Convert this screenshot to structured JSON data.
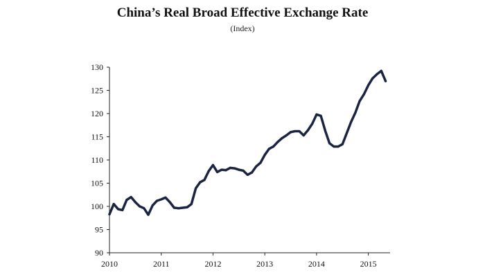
{
  "chart_data": {
    "type": "line",
    "title": "China’s Real Broad Effective Exchange Rate",
    "subtitle": "(Index)",
    "xlabel": "",
    "ylabel": "",
    "xlim": [
      2010,
      2015.42
    ],
    "ylim": [
      90,
      130
    ],
    "yticks": [
      90,
      95,
      100,
      105,
      110,
      115,
      120,
      125,
      130
    ],
    "xticks": [
      2010,
      2011,
      2012,
      2013,
      2014,
      2015
    ],
    "grid": false,
    "line_color": "#1b2440",
    "series": [
      {
        "name": "Real Broad Effective Exchange Rate",
        "x": [
          2010.0,
          2010.083,
          2010.167,
          2010.25,
          2010.333,
          2010.417,
          2010.5,
          2010.583,
          2010.667,
          2010.75,
          2010.833,
          2010.917,
          2011.0,
          2011.083,
          2011.167,
          2011.25,
          2011.333,
          2011.417,
          2011.5,
          2011.583,
          2011.667,
          2011.75,
          2011.833,
          2011.917,
          2012.0,
          2012.083,
          2012.167,
          2012.25,
          2012.333,
          2012.417,
          2012.5,
          2012.583,
          2012.667,
          2012.75,
          2012.833,
          2012.917,
          2013.0,
          2013.083,
          2013.167,
          2013.25,
          2013.333,
          2013.417,
          2013.5,
          2013.583,
          2013.667,
          2013.75,
          2013.833,
          2013.917,
          2014.0,
          2014.083,
          2014.167,
          2014.25,
          2014.333,
          2014.417,
          2014.5,
          2014.583,
          2014.667,
          2014.75,
          2014.833,
          2014.917,
          2015.0,
          2015.083,
          2015.167,
          2015.25,
          2015.333
        ],
        "values": [
          98.3,
          100.5,
          99.4,
          99.2,
          101.4,
          102.0,
          100.9,
          100.0,
          99.6,
          98.2,
          100.2,
          101.2,
          101.5,
          101.9,
          100.9,
          99.7,
          99.6,
          99.7,
          99.8,
          100.5,
          103.9,
          105.2,
          105.7,
          107.6,
          108.9,
          107.4,
          107.9,
          107.8,
          108.3,
          108.2,
          107.9,
          107.7,
          106.8,
          107.3,
          108.6,
          109.4,
          111.1,
          112.4,
          112.9,
          113.9,
          114.7,
          115.3,
          116.0,
          116.2,
          116.2,
          115.3,
          116.4,
          117.8,
          119.8,
          119.5,
          116.3,
          113.6,
          112.9,
          112.9,
          113.4,
          115.8,
          118.2,
          120.2,
          122.7,
          124.2,
          126.1,
          127.6,
          128.5,
          129.2,
          127.0
        ]
      }
    ]
  }
}
